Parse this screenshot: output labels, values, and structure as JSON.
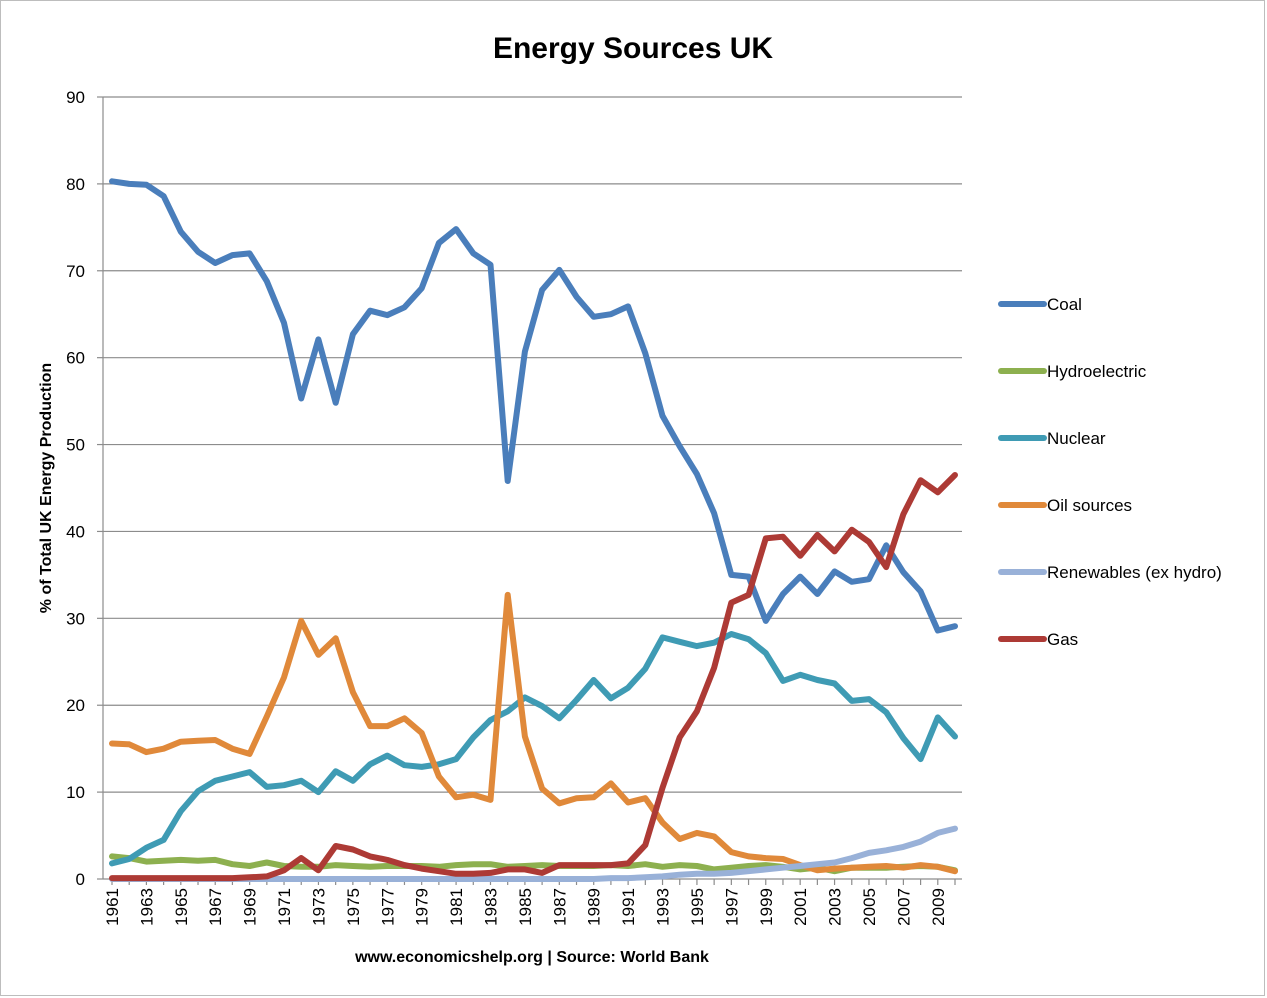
{
  "chart_data": {
    "type": "line",
    "title": "Energy Sources UK",
    "ylabel": "% of Total UK Energy Production",
    "xlabel": "www.economicshelp.org | Source: World Bank",
    "ylim": [
      0,
      90
    ],
    "yticks": [
      0,
      10,
      20,
      30,
      40,
      50,
      60,
      70,
      80,
      90
    ],
    "x": [
      1961,
      1962,
      1963,
      1964,
      1965,
      1966,
      1967,
      1968,
      1969,
      1970,
      1971,
      1972,
      1973,
      1974,
      1975,
      1976,
      1977,
      1978,
      1979,
      1980,
      1981,
      1982,
      1983,
      1984,
      1985,
      1986,
      1987,
      1988,
      1989,
      1990,
      1991,
      1992,
      1993,
      1994,
      1995,
      1996,
      1997,
      1998,
      1999,
      2000,
      2001,
      2002,
      2003,
      2004,
      2005,
      2006,
      2007,
      2008,
      2009,
      2010
    ],
    "xticks": [
      "1961",
      "1963",
      "1965",
      "1967",
      "1969",
      "1971",
      "1973",
      "1975",
      "1977",
      "1979",
      "1981",
      "1983",
      "1985",
      "1987",
      "1989",
      "1991",
      "1993",
      "1995",
      "1997",
      "1999",
      "2001",
      "2003",
      "2005",
      "2007",
      "2009"
    ],
    "grid": true,
    "legend_position": "right",
    "series": [
      {
        "name": "Coal",
        "color": "#4a7ebb",
        "values": [
          80.3,
          80.0,
          79.9,
          78.6,
          74.5,
          72.2,
          70.9,
          71.8,
          72.0,
          68.8,
          64.0,
          55.3,
          62.1,
          54.8,
          62.7,
          65.4,
          64.9,
          65.8,
          68.0,
          73.2,
          74.8,
          72.0,
          70.7,
          45.8,
          60.7,
          67.8,
          70.1,
          67.0,
          64.7,
          65.0,
          65.9,
          60.5,
          53.3,
          49.8,
          46.6,
          42.1,
          35.0,
          34.8,
          29.7,
          32.8,
          34.8,
          32.8,
          35.4,
          34.2,
          34.5,
          38.4,
          35.3,
          33.1,
          28.6,
          29.1
        ]
      },
      {
        "name": "Hydroelectric",
        "color": "#8db04f",
        "values": [
          2.6,
          2.4,
          2.0,
          2.1,
          2.2,
          2.1,
          2.2,
          1.7,
          1.5,
          1.9,
          1.5,
          1.4,
          1.4,
          1.6,
          1.5,
          1.4,
          1.5,
          1.5,
          1.5,
          1.4,
          1.6,
          1.7,
          1.7,
          1.4,
          1.5,
          1.6,
          1.5,
          1.5,
          1.5,
          1.6,
          1.5,
          1.7,
          1.4,
          1.6,
          1.5,
          1.1,
          1.3,
          1.5,
          1.6,
          1.4,
          1.1,
          1.3,
          0.9,
          1.3,
          1.3,
          1.3,
          1.4,
          1.5,
          1.4,
          1.0
        ]
      },
      {
        "name": "Nuclear",
        "color": "#3f9bb4",
        "values": [
          1.8,
          2.3,
          3.6,
          4.5,
          7.8,
          10.1,
          11.3,
          11.8,
          12.3,
          10.6,
          10.8,
          11.3,
          10.0,
          12.4,
          11.3,
          13.2,
          14.2,
          13.1,
          12.9,
          13.2,
          13.8,
          16.3,
          18.3,
          19.3,
          20.9,
          19.9,
          18.5,
          20.6,
          22.9,
          20.8,
          22.0,
          24.2,
          27.8,
          27.3,
          26.8,
          27.2,
          28.2,
          27.6,
          26.0,
          22.8,
          23.5,
          22.9,
          22.5,
          20.5,
          20.7,
          19.2,
          16.2,
          13.8,
          18.6,
          16.4
        ]
      },
      {
        "name": "Oil sources",
        "color": "#e0893a",
        "values": [
          15.6,
          15.5,
          14.6,
          15.0,
          15.8,
          15.9,
          16.0,
          15.0,
          14.4,
          18.7,
          23.2,
          29.7,
          25.8,
          27.7,
          21.5,
          17.6,
          17.6,
          18.5,
          16.8,
          11.8,
          9.4,
          9.7,
          9.1,
          32.7,
          16.4,
          10.4,
          8.7,
          9.3,
          9.4,
          11.0,
          8.8,
          9.3,
          6.5,
          4.6,
          5.3,
          4.9,
          3.1,
          2.6,
          2.4,
          2.3,
          1.6,
          1.0,
          1.2,
          1.3,
          1.4,
          1.5,
          1.3,
          1.6,
          1.4,
          0.9
        ]
      },
      {
        "name": "Renewables (ex hydro)",
        "color": "#99b1d8",
        "values": [
          0,
          0,
          0,
          0,
          0,
          0,
          0,
          0,
          0,
          0,
          0,
          0,
          0,
          0,
          0,
          0,
          0,
          0,
          0,
          0,
          0,
          0,
          0,
          0,
          0,
          0,
          0,
          0,
          0,
          0.1,
          0.1,
          0.2,
          0.3,
          0.5,
          0.6,
          0.6,
          0.7,
          0.9,
          1.1,
          1.3,
          1.5,
          1.7,
          1.9,
          2.4,
          3.0,
          3.3,
          3.7,
          4.3,
          5.3,
          5.8
        ]
      },
      {
        "name": "Gas",
        "color": "#ad3a35",
        "values": [
          0.1,
          0.1,
          0.1,
          0.1,
          0.1,
          0.1,
          0.1,
          0.1,
          0.2,
          0.3,
          1.0,
          2.4,
          1.0,
          3.8,
          3.4,
          2.6,
          2.2,
          1.6,
          1.2,
          0.9,
          0.6,
          0.6,
          0.7,
          1.1,
          1.1,
          0.7,
          1.6,
          1.6,
          1.6,
          1.6,
          1.8,
          3.9,
          10.5,
          16.3,
          19.3,
          24.3,
          31.8,
          32.7,
          39.2,
          39.4,
          37.2,
          39.6,
          37.7,
          40.2,
          38.8,
          35.9,
          42.0,
          45.9,
          44.5,
          46.5
        ]
      }
    ]
  }
}
